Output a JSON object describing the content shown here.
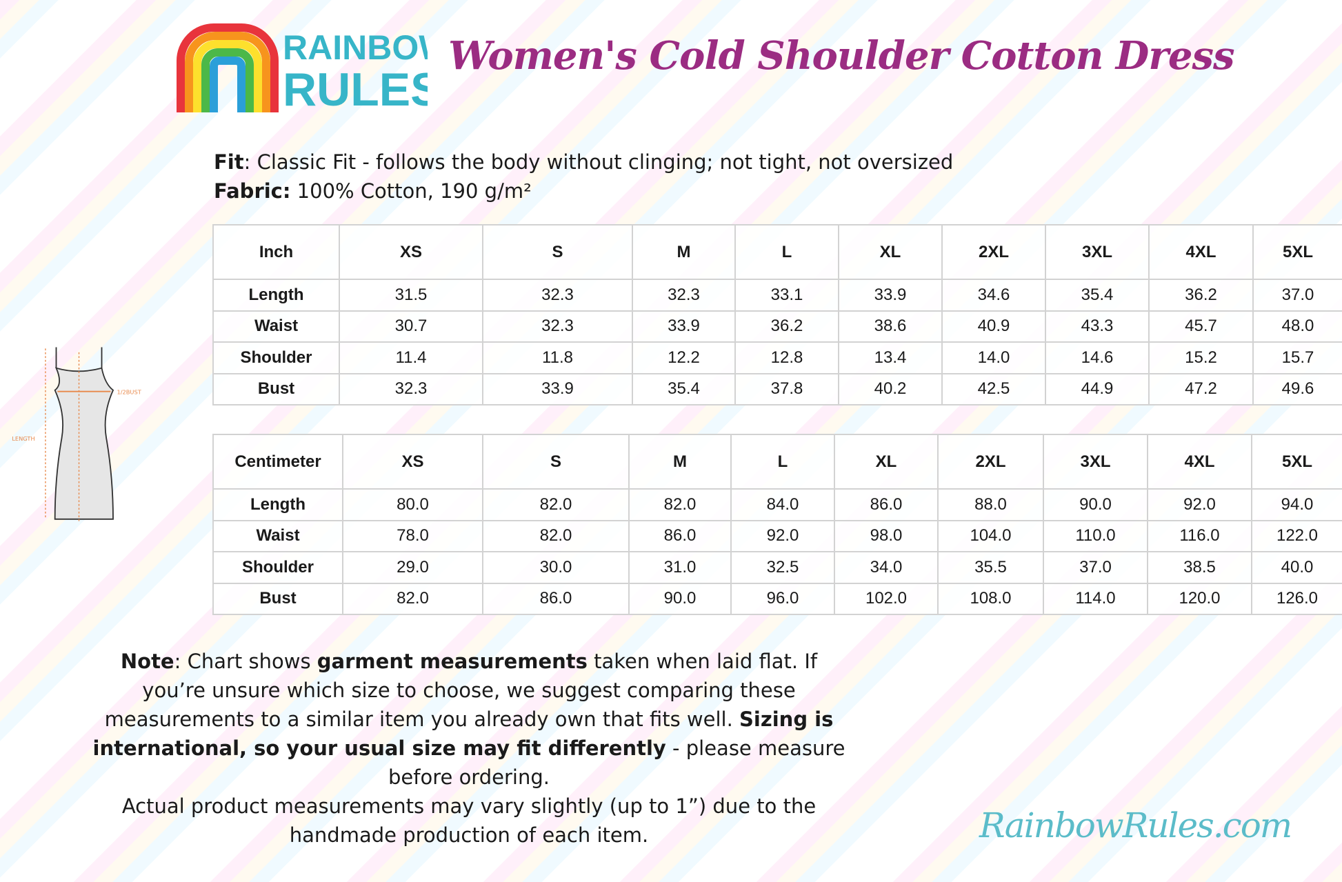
{
  "brand": {
    "logo_text_1": "RAINBOW",
    "logo_text_2": "RULES",
    "website": "RainbowRules.com",
    "title_color": "#9b2c82",
    "site_color": "#5bbcc9"
  },
  "title": "Women's Cold Shoulder Cotton Dress",
  "fit": {
    "label": "Fit",
    "value": ": Classic Fit - follows the body without clinging; not tight, not oversized"
  },
  "fabric": {
    "label": "Fabric:",
    "value": " 100% Cotton, 190 g/m²"
  },
  "diagram": {
    "bust_label": "1/2BUST",
    "length_label": "LENGTH"
  },
  "inch_table": {
    "header": [
      "Inch",
      "XS",
      "S",
      "M",
      "L",
      "XL",
      "2XL",
      "3XL",
      "4XL",
      "5XL"
    ],
    "rows": [
      [
        "Length",
        "31.5",
        "32.3",
        "32.3",
        "33.1",
        "33.9",
        "34.6",
        "35.4",
        "36.2",
        "37.0"
      ],
      [
        "Waist",
        "30.7",
        "32.3",
        "33.9",
        "36.2",
        "38.6",
        "40.9",
        "43.3",
        "45.7",
        "48.0"
      ],
      [
        "Shoulder",
        "11.4",
        "11.8",
        "12.2",
        "12.8",
        "13.4",
        "14.0",
        "14.6",
        "15.2",
        "15.7"
      ],
      [
        "Bust",
        "32.3",
        "33.9",
        "35.4",
        "37.8",
        "40.2",
        "42.5",
        "44.9",
        "47.2",
        "49.6"
      ]
    ]
  },
  "cm_table": {
    "header": [
      "Centimeter",
      "XS",
      "S",
      "M",
      "L",
      "XL",
      "2XL",
      "3XL",
      "4XL",
      "5XL"
    ],
    "rows": [
      [
        "Length",
        "80.0",
        "82.0",
        "82.0",
        "84.0",
        "86.0",
        "88.0",
        "90.0",
        "92.0",
        "94.0"
      ],
      [
        "Waist",
        "78.0",
        "82.0",
        "86.0",
        "92.0",
        "98.0",
        "104.0",
        "110.0",
        "116.0",
        "122.0"
      ],
      [
        "Shoulder",
        "29.0",
        "30.0",
        "31.0",
        "32.5",
        "34.0",
        "35.5",
        "37.0",
        "38.5",
        "40.0"
      ],
      [
        "Bust",
        "82.0",
        "86.0",
        "90.0",
        "96.0",
        "102.0",
        "108.0",
        "114.0",
        "120.0",
        "126.0"
      ]
    ]
  },
  "note": {
    "label": "Note",
    "t1": ": Chart shows ",
    "b1": "garment measurements",
    "t2": " taken when laid flat. If you’re unsure which size to choose, we suggest comparing these measurements to a similar item you already own that fits well. ",
    "b2": "Sizing is international, so your usual size may fit differently",
    "t3": " - please measure before ordering."
  },
  "disclaimer": "Actual product measurements may vary slightly (up to 1”) due to the handmade production of each item."
}
